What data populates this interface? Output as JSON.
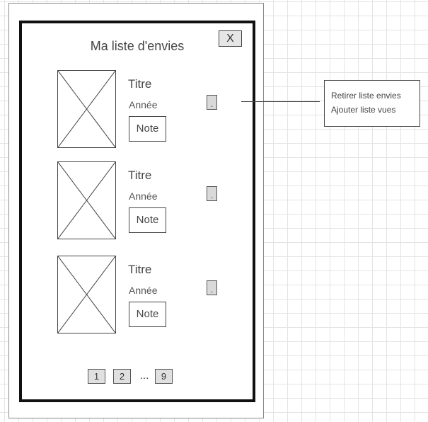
{
  "modal": {
    "title": "Ma liste d'envies",
    "close_label": "X"
  },
  "items": [
    {
      "title": "Titre",
      "year": "Année",
      "note_label": "Note",
      "menu_label": "."
    },
    {
      "title": "Titre",
      "year": "Année",
      "note_label": "Note",
      "menu_label": "."
    },
    {
      "title": "Titre",
      "year": "Année",
      "note_label": "Note",
      "menu_label": "."
    }
  ],
  "pagination": {
    "first": "1",
    "second": "2",
    "ellipsis": "...",
    "last": "9"
  },
  "context_menu": {
    "items": [
      "Retirer liste envies",
      "Ajouter liste vues"
    ]
  }
}
